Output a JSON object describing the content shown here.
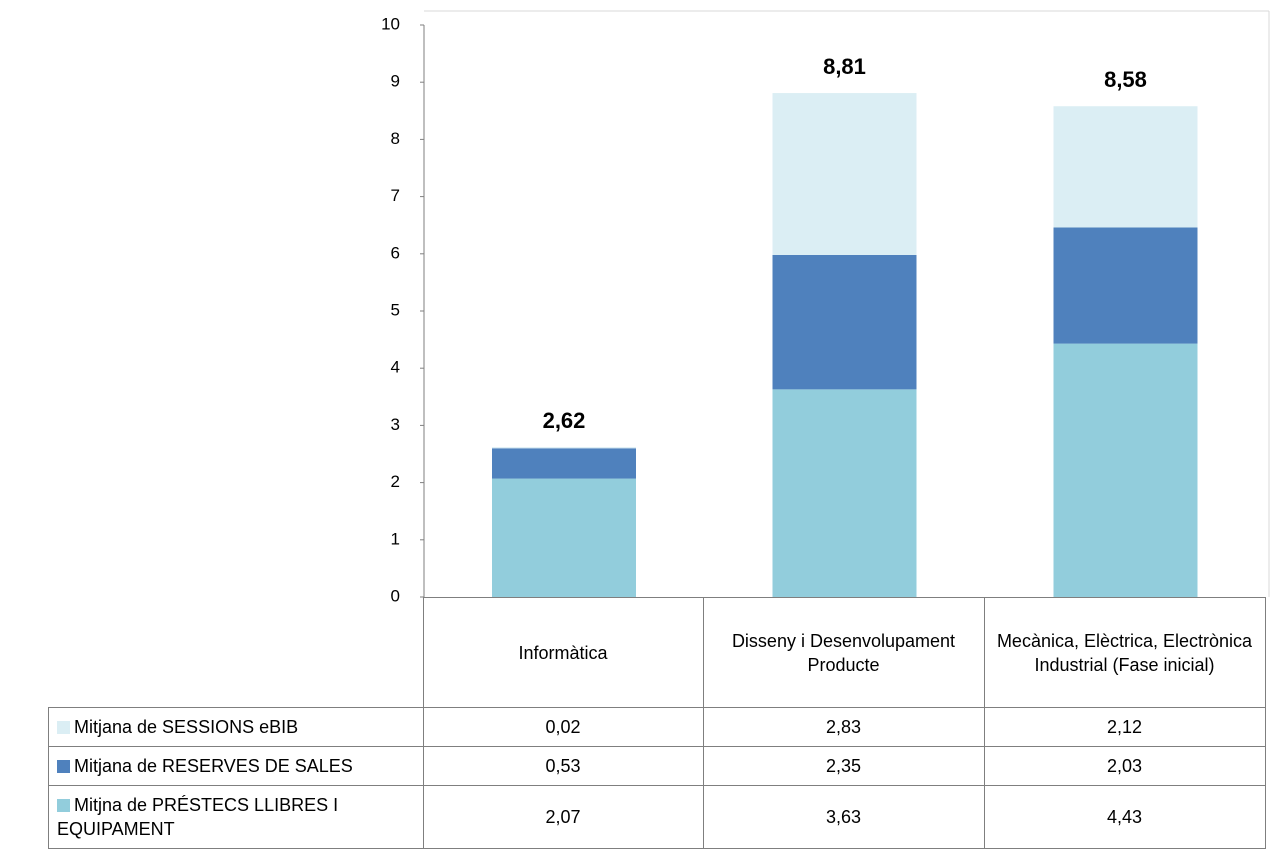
{
  "chart_data": {
    "type": "stacked_bar",
    "categories": [
      "Informàtica",
      "Disseny i Desenvolupament Producte",
      "Mecànica, Elèctrica, Electrònica Industrial (Fase inicial)"
    ],
    "series": [
      {
        "name": "Mitjna de PRÉSTECS LLIBRES I EQUIPAMENT",
        "color": "#92cddc",
        "values": [
          2.07,
          3.63,
          4.43
        ],
        "value_labels": [
          "2,07",
          "3,63",
          "4,43"
        ]
      },
      {
        "name": "Mitjana de RESERVES DE SALES",
        "color": "#4f81bd",
        "values": [
          0.53,
          2.35,
          2.03
        ],
        "value_labels": [
          "0,53",
          "2,35",
          "2,03"
        ]
      },
      {
        "name": "Mitjana de SESSIONS eBIB",
        "color": "#dbeef4",
        "values": [
          0.02,
          2.83,
          2.12
        ],
        "value_labels": [
          "0,02",
          "2,83",
          "2,12"
        ]
      }
    ],
    "totals": {
      "values": [
        2.62,
        8.81,
        8.58
      ],
      "value_labels": [
        "2,62",
        "8,81",
        "8,58"
      ]
    },
    "ylim": [
      0,
      10
    ],
    "yticks": [
      0,
      1,
      2,
      3,
      4,
      5,
      6,
      7,
      8,
      9,
      10
    ]
  }
}
